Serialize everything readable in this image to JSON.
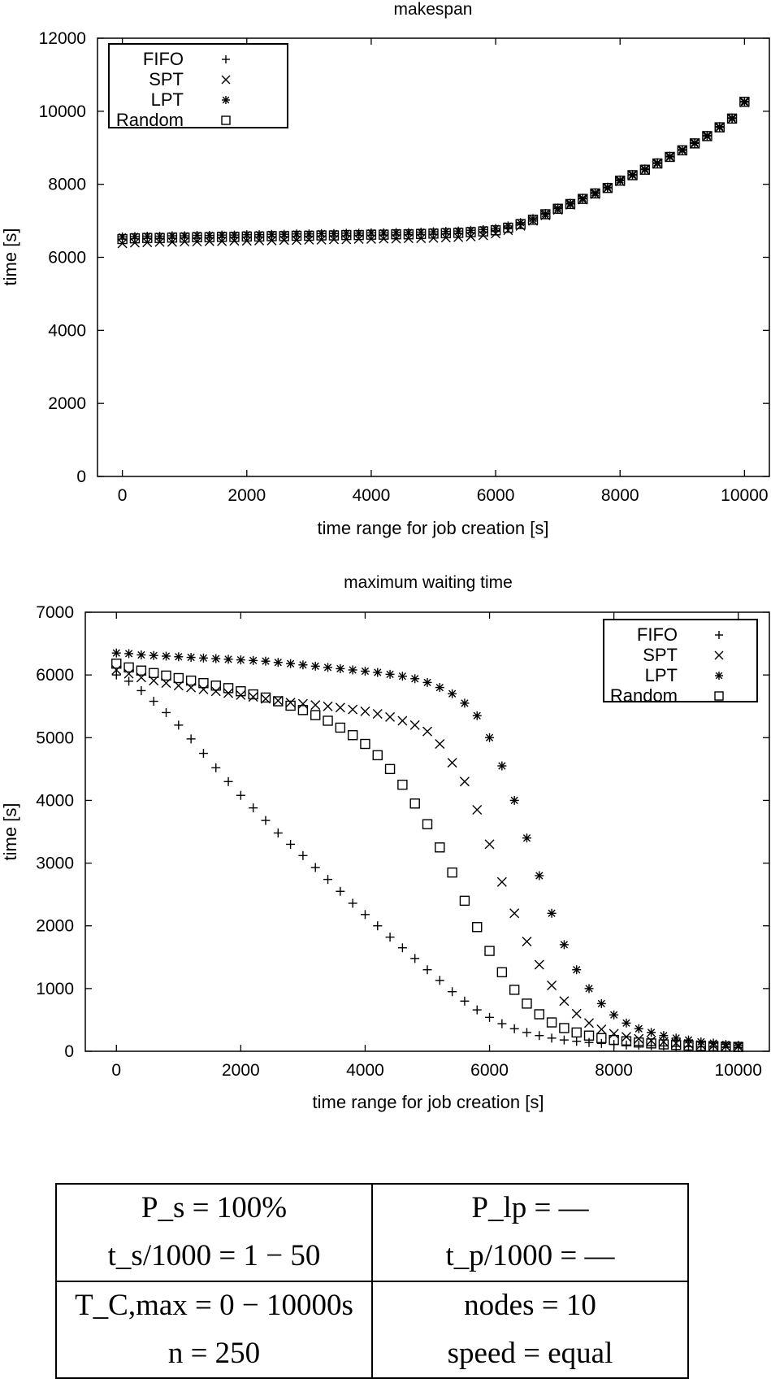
{
  "chart_data": [
    {
      "type": "scatter",
      "title": "makespan",
      "xlabel": "time range for job creation [s]",
      "ylabel": "time [s]",
      "xlim": [
        -400,
        10400
      ],
      "ylim": [
        0,
        12000
      ],
      "xticks": [
        "0",
        "2000",
        "4000",
        "6000",
        "8000",
        "10000"
      ],
      "yticks": [
        "0",
        "2000",
        "4000",
        "6000",
        "8000",
        "10000",
        "12000"
      ],
      "grid": false,
      "legend_position": "top-left",
      "x": [
        0,
        200,
        400,
        600,
        800,
        1000,
        1200,
        1400,
        1600,
        1800,
        2000,
        2200,
        2400,
        2600,
        2800,
        3000,
        3200,
        3400,
        3600,
        3800,
        4000,
        4200,
        4400,
        4600,
        4800,
        5000,
        5200,
        5400,
        5600,
        5800,
        6000,
        6200,
        6400,
        6600,
        6800,
        7000,
        7200,
        7400,
        7600,
        7800,
        8000,
        8200,
        8400,
        8600,
        8800,
        9000,
        9200,
        9400,
        9600,
        9800,
        10000
      ],
      "series": [
        {
          "name": "FIFO",
          "marker": "plus",
          "values": [
            6500,
            6510,
            6520,
            6510,
            6520,
            6530,
            6520,
            6530,
            6540,
            6540,
            6550,
            6550,
            6560,
            6560,
            6570,
            6570,
            6580,
            6580,
            6590,
            6600,
            6600,
            6610,
            6610,
            6620,
            6620,
            6630,
            6640,
            6650,
            6670,
            6690,
            6720,
            6800,
            6900,
            7020,
            7180,
            7330,
            7460,
            7600,
            7750,
            7900,
            8100,
            8250,
            8400,
            8570,
            8750,
            8930,
            9120,
            9320,
            9560,
            9800,
            10250
          ]
        },
        {
          "name": "SPT",
          "marker": "cross",
          "values": [
            6380,
            6400,
            6410,
            6420,
            6420,
            6430,
            6430,
            6440,
            6440,
            6450,
            6450,
            6460,
            6460,
            6470,
            6470,
            6480,
            6480,
            6490,
            6490,
            6500,
            6500,
            6510,
            6510,
            6520,
            6520,
            6530,
            6540,
            6550,
            6570,
            6600,
            6650,
            6740,
            6860,
            7000,
            7150,
            7300,
            7440,
            7580,
            7730,
            7890,
            8080,
            8240,
            8390,
            8560,
            8740,
            8920,
            9110,
            9310,
            9550,
            9790,
            10240
          ]
        },
        {
          "name": "LPT",
          "marker": "star",
          "values": [
            6560,
            6570,
            6580,
            6580,
            6590,
            6590,
            6600,
            6600,
            6610,
            6610,
            6620,
            6620,
            6630,
            6630,
            6640,
            6640,
            6650,
            6650,
            6660,
            6660,
            6670,
            6670,
            6680,
            6680,
            6690,
            6700,
            6710,
            6720,
            6740,
            6760,
            6790,
            6860,
            6950,
            7060,
            7200,
            7350,
            7480,
            7620,
            7770,
            7920,
            8120,
            8270,
            8420,
            8590,
            8770,
            8950,
            9140,
            9340,
            9580,
            9820,
            10270
          ]
        },
        {
          "name": "Random",
          "marker": "square",
          "values": [
            6500,
            6520,
            6530,
            6530,
            6540,
            6540,
            6550,
            6550,
            6560,
            6560,
            6570,
            6570,
            6580,
            6580,
            6590,
            6590,
            6600,
            6600,
            6610,
            6610,
            6620,
            6620,
            6630,
            6630,
            6640,
            6650,
            6660,
            6670,
            6690,
            6710,
            6740,
            6810,
            6910,
            7030,
            7180,
            7330,
            7460,
            7600,
            7750,
            7900,
            8100,
            8250,
            8400,
            8570,
            8750,
            8930,
            9120,
            9320,
            9560,
            9800,
            10260
          ]
        }
      ]
    },
    {
      "type": "scatter",
      "title": "maximum waiting time",
      "xlabel": "time range for job creation [s]",
      "ylabel": "time [s]",
      "xlim": [
        -500,
        10500
      ],
      "ylim": [
        0,
        7000
      ],
      "xticks": [
        "0",
        "2000",
        "4000",
        "6000",
        "8000",
        "10000"
      ],
      "yticks": [
        "0",
        "1000",
        "2000",
        "3000",
        "4000",
        "5000",
        "6000",
        "7000"
      ],
      "grid": false,
      "legend_position": "top-right",
      "x": [
        0,
        200,
        400,
        600,
        800,
        1000,
        1200,
        1400,
        1600,
        1800,
        2000,
        2200,
        2400,
        2600,
        2800,
        3000,
        3200,
        3400,
        3600,
        3800,
        4000,
        4200,
        4400,
        4600,
        4800,
        5000,
        5200,
        5400,
        5600,
        5800,
        6000,
        6200,
        6400,
        6600,
        6800,
        7000,
        7200,
        7400,
        7600,
        7800,
        8000,
        8200,
        8400,
        8600,
        8800,
        9000,
        9200,
        9400,
        9600,
        9800,
        10000
      ],
      "series": [
        {
          "name": "FIFO",
          "marker": "plus",
          "values": [
            6000,
            5900,
            5750,
            5580,
            5400,
            5200,
            4980,
            4750,
            4520,
            4300,
            4080,
            3880,
            3680,
            3480,
            3300,
            3120,
            2930,
            2740,
            2550,
            2360,
            2180,
            2000,
            1820,
            1650,
            1480,
            1300,
            1130,
            950,
            800,
            660,
            540,
            440,
            360,
            300,
            250,
            210,
            180,
            160,
            140,
            125,
            110,
            100,
            95,
            90,
            85,
            80,
            75,
            70,
            68,
            65,
            62
          ]
        },
        {
          "name": "SPT",
          "marker": "cross",
          "values": [
            6080,
            6020,
            5960,
            5910,
            5870,
            5830,
            5800,
            5770,
            5740,
            5710,
            5680,
            5650,
            5620,
            5590,
            5560,
            5540,
            5520,
            5500,
            5480,
            5450,
            5420,
            5380,
            5330,
            5270,
            5200,
            5100,
            4900,
            4600,
            4300,
            3850,
            3300,
            2700,
            2200,
            1750,
            1380,
            1050,
            800,
            600,
            450,
            350,
            280,
            230,
            200,
            170,
            150,
            130,
            115,
            100,
            90,
            80,
            75
          ]
        },
        {
          "name": "LPT",
          "marker": "star",
          "values": [
            6350,
            6340,
            6320,
            6310,
            6300,
            6290,
            6280,
            6270,
            6260,
            6250,
            6240,
            6230,
            6220,
            6200,
            6180,
            6160,
            6140,
            6120,
            6100,
            6080,
            6060,
            6040,
            6010,
            5980,
            5940,
            5880,
            5800,
            5700,
            5550,
            5350,
            5000,
            4550,
            4000,
            3400,
            2800,
            2200,
            1700,
            1300,
            1000,
            760,
            580,
            450,
            360,
            300,
            250,
            210,
            180,
            150,
            130,
            110,
            95
          ]
        },
        {
          "name": "Random",
          "marker": "square",
          "values": [
            6180,
            6120,
            6070,
            6030,
            5990,
            5950,
            5910,
            5870,
            5830,
            5790,
            5740,
            5690,
            5640,
            5580,
            5510,
            5440,
            5360,
            5270,
            5160,
            5040,
            4900,
            4720,
            4500,
            4250,
            3950,
            3620,
            3250,
            2850,
            2400,
            1980,
            1600,
            1260,
            980,
            760,
            590,
            460,
            370,
            300,
            250,
            210,
            180,
            160,
            140,
            125,
            110,
            100,
            92,
            85,
            80,
            75,
            70
          ]
        }
      ]
    }
  ],
  "params": {
    "ps": "P_s = 100%",
    "plp": "P_lp = —",
    "ts": "t_s/1000 = 1 − 50",
    "tp": "t_p/1000 = —",
    "tc": "T_C,max = 0 − 10000s",
    "nodes": "nodes = 10",
    "n": "n = 250",
    "speed": "speed = equal"
  }
}
